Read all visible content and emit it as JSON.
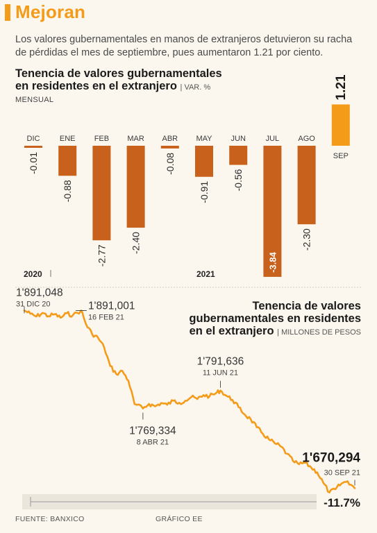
{
  "headline": "Mejoran",
  "intro": "Los valores gubernamentales en manos de extranjeros detuvieron su racha de pérdidas el mes de septiembre, pues aumentaron 1.21 por ciento.",
  "bar_chart": {
    "title_line1": "Tenencia de valores gubernamentales",
    "title_line2": "en residentes en el extranjero",
    "unit": "| VAR. %",
    "subtitle": "MENSUAL",
    "year_labels": [
      "2020",
      "2021"
    ]
  },
  "line_chart": {
    "title_line1": "Tenencia de valores",
    "title_line2": "gubernamentales en residentes",
    "title_line3": "en el extranjero",
    "unit": "| MILLONES DE PESOS",
    "total_change": "-11.7%"
  },
  "footer": {
    "source": "FUENTE: BANXICO",
    "credit": "GRÁFICO EE"
  },
  "colors": {
    "accent": "#f49b1a",
    "negative_bar": "#c8611b",
    "positive_bar": "#f49b1a",
    "line": "#f49b1a"
  },
  "chart_data": [
    {
      "type": "bar",
      "categories": [
        "DIC",
        "ENE",
        "FEB",
        "MAR",
        "ABR",
        "MAY",
        "JUN",
        "JUL",
        "AGO",
        "SEP"
      ],
      "values": [
        -0.01,
        -0.88,
        -2.77,
        -2.4,
        -0.08,
        -0.91,
        -0.56,
        -3.84,
        -2.3,
        1.21
      ],
      "value_labels": [
        "-0.01",
        "-0.88",
        "-2.77",
        "-2.40",
        "-0.08",
        "-0.91",
        "-0.56",
        "-3.84",
        "-2.30",
        "1.21"
      ],
      "ylim": [
        -3.84,
        1.21
      ],
      "grid": false
    },
    {
      "type": "line",
      "x_range": [
        "2020-12-31",
        "2021-09-30"
      ],
      "ylim": [
        1650000,
        1900000
      ],
      "grid": false,
      "x": [
        "2020-12-31",
        "2021-01-05",
        "2021-01-10",
        "2021-01-15",
        "2021-01-20",
        "2021-01-25",
        "2021-01-30",
        "2021-02-04",
        "2021-02-09",
        "2021-02-16",
        "2021-02-20",
        "2021-02-25",
        "2021-03-02",
        "2021-03-07",
        "2021-03-12",
        "2021-03-17",
        "2021-03-22",
        "2021-03-27",
        "2021-04-01",
        "2021-04-08",
        "2021-04-13",
        "2021-04-18",
        "2021-04-23",
        "2021-04-28",
        "2021-05-03",
        "2021-05-08",
        "2021-05-13",
        "2021-05-18",
        "2021-05-23",
        "2021-05-28",
        "2021-06-02",
        "2021-06-07",
        "2021-06-11",
        "2021-06-16",
        "2021-06-21",
        "2021-06-26",
        "2021-07-01",
        "2021-07-06",
        "2021-07-11",
        "2021-07-16",
        "2021-07-21",
        "2021-07-26",
        "2021-07-31",
        "2021-08-05",
        "2021-08-10",
        "2021-08-15",
        "2021-08-20",
        "2021-08-25",
        "2021-08-30",
        "2021-09-04",
        "2021-09-09",
        "2021-09-14",
        "2021-09-19",
        "2021-09-24",
        "2021-09-30"
      ],
      "y": [
        1891048,
        1887000,
        1883500,
        1888000,
        1884000,
        1886500,
        1882000,
        1887500,
        1885000,
        1891001,
        1874000,
        1862000,
        1857000,
        1845000,
        1822000,
        1812000,
        1816000,
        1804000,
        1775000,
        1769334,
        1775000,
        1772000,
        1776000,
        1774000,
        1779000,
        1776500,
        1779000,
        1783500,
        1781000,
        1786000,
        1784500,
        1788000,
        1791636,
        1785000,
        1780000,
        1771000,
        1762000,
        1756000,
        1746000,
        1738000,
        1731000,
        1726000,
        1722000,
        1713000,
        1704000,
        1700000,
        1702000,
        1696000,
        1690000,
        1677000,
        1665000,
        1669000,
        1676000,
        1679000,
        1670294
      ],
      "annotations": [
        {
          "label": "1'891,048",
          "date": "31 DIC 20",
          "x": "2020-12-31",
          "y": 1891048
        },
        {
          "label": "1'891,001",
          "date": "16 FEB 21",
          "x": "2021-02-16",
          "y": 1891001
        },
        {
          "label": "1'769,334",
          "date": "8 ABR 21",
          "x": "2021-04-08",
          "y": 1769334
        },
        {
          "label": "1'791,636",
          "date": "11 JUN 21",
          "x": "2021-06-11",
          "y": 1791636
        },
        {
          "label": "1'670,294",
          "date": "30 SEP 21",
          "x": "2021-09-30",
          "y": 1670294
        }
      ]
    }
  ]
}
